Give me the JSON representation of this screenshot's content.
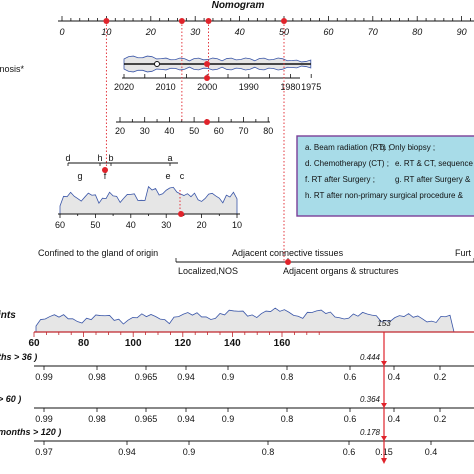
{
  "chart_data": {
    "type": "nomogram",
    "title": "Nomogram",
    "points_scale": {
      "ticks": [
        "0",
        "10",
        "20",
        "30",
        "40",
        "50",
        "60",
        "70",
        "80",
        "90"
      ],
      "values": [
        0,
        10,
        20,
        30,
        40,
        50,
        60,
        70,
        80,
        90
      ],
      "markers": [
        10,
        27,
        33,
        50
      ]
    },
    "year_scale": {
      "label": "...nosis*",
      "ticks": [
        "2020",
        "2010",
        "2000",
        "1990",
        "1980",
        "1975"
      ],
      "values": [
        2020,
        2010,
        2000,
        1990,
        1980,
        1975
      ]
    },
    "age_scale": {
      "ticks": [
        "20",
        "30",
        "40",
        "50",
        "60",
        "70",
        "80"
      ],
      "values": [
        20,
        30,
        40,
        50,
        60,
        70,
        80
      ]
    },
    "treatment_scale": {
      "upper_ticks": [
        "d",
        "h",
        "b",
        "a"
      ],
      "lower_ticks": [
        "g",
        "f",
        "e",
        "c"
      ]
    },
    "treatment_legend": [
      "a. Beam radiation (RT) ;",
      "b. Only biopsy ;",
      "d. Chemotherapy (CT) ;",
      "e. RT & CT, sequence",
      "f. RT after Surgery ;",
      "g. RT after Surgery &",
      "h. RT after non-primary surgical procedure &"
    ],
    "density_scale": {
      "ticks": [
        "60",
        "50",
        "40",
        "30",
        "20",
        "10"
      ],
      "values": [
        60,
        50,
        40,
        30,
        20,
        10
      ]
    },
    "stage_scale": {
      "upper_labels": [
        "Confined to the gland of origin",
        "Adjacent connective tissues",
        "Furt"
      ],
      "lower_labels": [
        "Localized,NOS",
        "Adjacent organs & structures"
      ]
    },
    "total_points": {
      "label": "ints",
      "ticks": [
        "60",
        "80",
        "100",
        "120",
        "140",
        "160"
      ],
      "values": [
        60,
        80,
        100,
        120,
        140,
        160
      ],
      "value": 153,
      "value_label": "153"
    },
    "survival_axes": [
      {
        "label": "ths > 36 )",
        "ticks": [
          "0.99",
          "0.98",
          "0.965",
          "0.94",
          "0.9",
          "0.8",
          "0.6",
          "0.4",
          "0.2"
        ],
        "estimate": 0.444,
        "estimate_label": "0.444"
      },
      {
        "label": "> 60 )",
        "ticks": [
          "0.99",
          "0.98",
          "0.965",
          "0.94",
          "0.9",
          "0.8",
          "0.6",
          "0.4",
          "0.2"
        ],
        "estimate": 0.364,
        "estimate_label": "0.364"
      },
      {
        "label": "months > 120 )",
        "ticks": [
          "0.97",
          "0.94",
          "0.9",
          "0.8",
          "0.6",
          "0.4",
          "0.15"
        ],
        "estimate": 0.178,
        "estimate_label": "0.178"
      }
    ],
    "colors": {
      "axis": "#111111",
      "marker": "#e0232b",
      "points_axis": "#c0272d",
      "density_fill": "#e6e6e6",
      "density_line": "#3a56a8",
      "legend_fill": "#a8dce8",
      "legend_border": "#7b3f98"
    }
  }
}
